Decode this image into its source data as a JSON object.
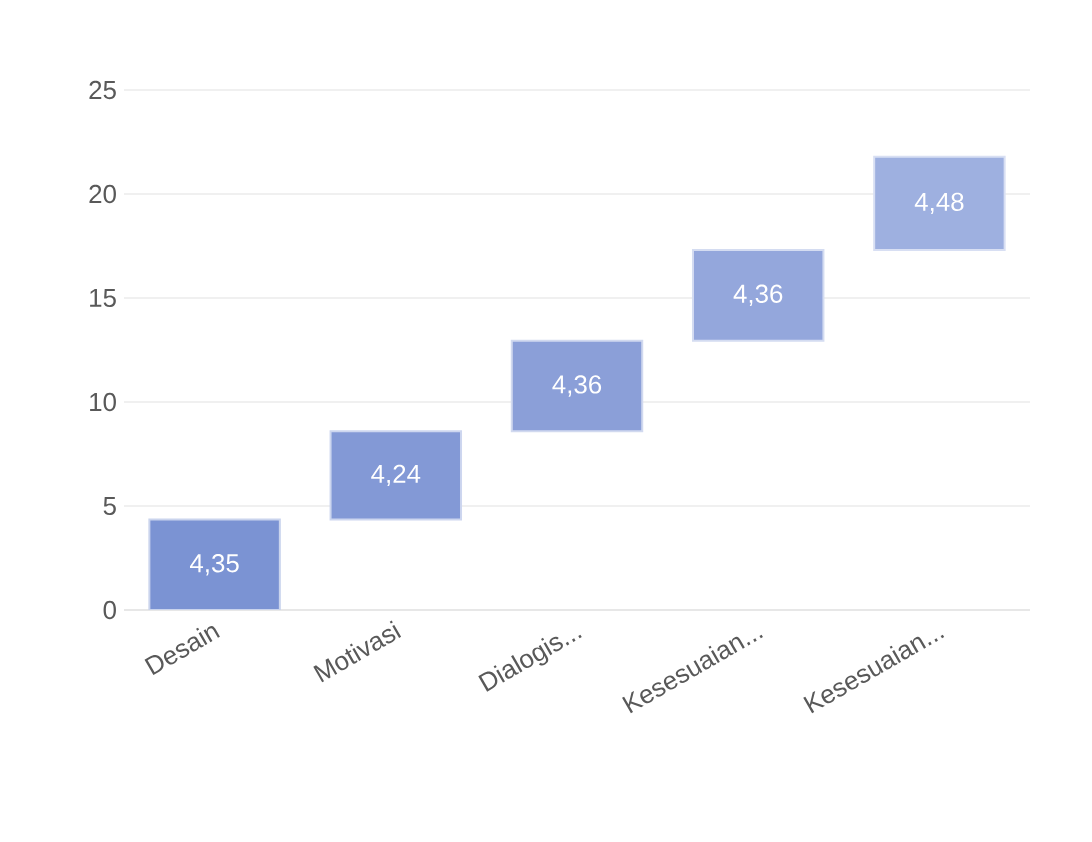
{
  "chart_data": {
    "type": "bar",
    "categories": [
      "Desain",
      "Motivasi",
      "Dialogis...",
      "Kesesuaian...",
      "Kesesuaian..."
    ],
    "values": [
      4.35,
      4.24,
      4.36,
      4.36,
      4.48
    ],
    "base": [
      0,
      4.35,
      8.59,
      12.95,
      17.31
    ],
    "value_labels": [
      "4,35",
      "4,24",
      "4,36",
      "4,36",
      "4,48"
    ],
    "colors": [
      "#7b93d3",
      "#8399d6",
      "#8b9fd8",
      "#94a7dc",
      "#9eb0e0"
    ],
    "ylim": [
      0,
      25
    ],
    "yticks": [
      0,
      5,
      10,
      15,
      20,
      25
    ],
    "grid": "y"
  }
}
